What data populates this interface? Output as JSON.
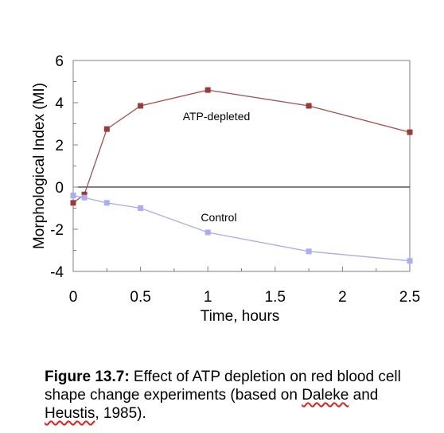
{
  "chart_data": {
    "type": "line",
    "title": "",
    "xlabel": "Time, hours",
    "ylabel": "Morphological Index (MI)",
    "xlim": [
      0,
      2.5
    ],
    "ylim": [
      -4,
      6
    ],
    "x_ticks": [
      "0",
      "0.5",
      "1",
      "1.5",
      "2",
      "2.5"
    ],
    "y_ticks": [
      "-4",
      "-2",
      "0",
      "2",
      "4",
      "6"
    ],
    "grid": false,
    "legend": "none",
    "series": [
      {
        "name": "ATP-depleted",
        "color": "#a0504c",
        "marker_color": "#9b3b38",
        "x": [
          0,
          0.083,
          0.25,
          0.5,
          1.0,
          1.75,
          2.5
        ],
        "y": [
          -0.75,
          -0.35,
          2.75,
          3.85,
          4.6,
          3.85,
          2.6
        ]
      },
      {
        "name": "Control",
        "color": "#a8acec",
        "marker_color": "#a9aef2",
        "x": [
          0,
          0.083,
          0.25,
          0.5,
          1.0,
          1.75,
          2.5
        ],
        "y": [
          -0.4,
          -0.5,
          -0.75,
          -1.0,
          -2.15,
          -3.05,
          -3.5
        ]
      }
    ]
  },
  "caption": {
    "label": "Figure 13.7:",
    "text_line1": " Effect of ATP depletion on red blood cell shape change experiments (based on ",
    "author1": "Daleke",
    "and": " and ",
    "author2": "Heustis",
    "tail": ", 1985)."
  }
}
